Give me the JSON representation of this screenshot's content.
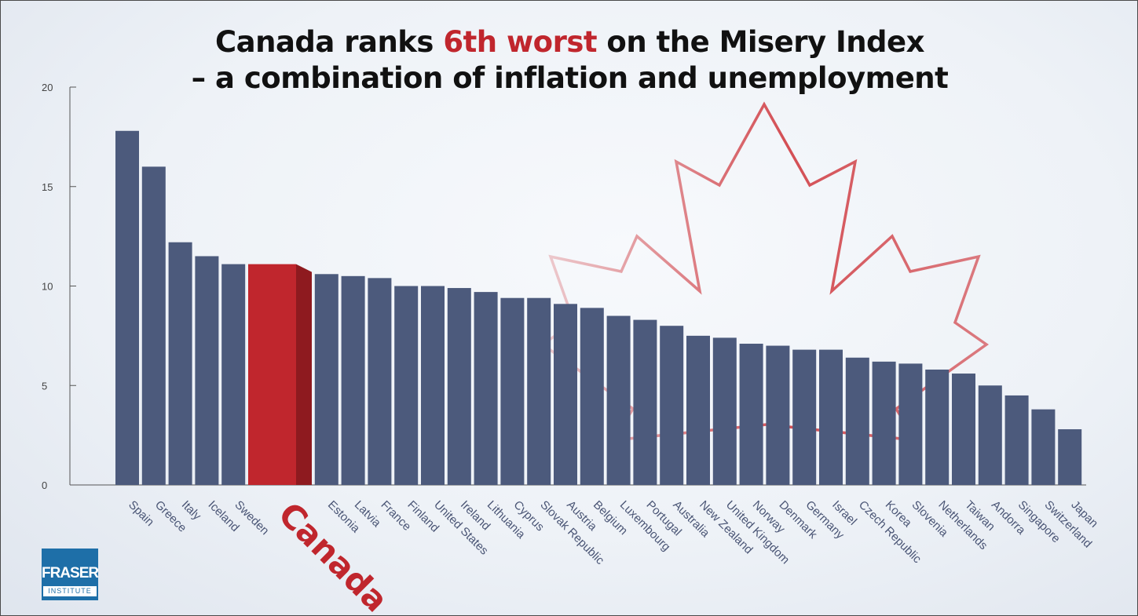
{
  "title": {
    "line1_pre": "Canada ranks ",
    "line1_highlight": "6th worst",
    "line1_post": " on the Misery Index",
    "line2": "– a combination of inflation and unemployment"
  },
  "logo": {
    "name": "FRASER",
    "sub": "INSTITUTE"
  },
  "colors": {
    "bar": "#4c5a7c",
    "highlight": "#c0262d",
    "highlight_side": "#8e1a1f",
    "leaf": "#d2464c"
  },
  "chart_data": {
    "type": "bar",
    "title": "Canada ranks 6th worst on the Misery Index – a combination of inflation and unemployment",
    "ylim": [
      0,
      20
    ],
    "yticks": [
      0,
      5,
      10,
      15,
      20
    ],
    "grid": false,
    "highlight_category": "Canada",
    "categories": [
      "Spain",
      "Greece",
      "Italy",
      "Iceland",
      "Sweden",
      "Canada",
      "Estonia",
      "Latvia",
      "France",
      "Finland",
      "United States",
      "Ireland",
      "Lithuania",
      "Cyprus",
      "Slovak Republic",
      "Austria",
      "Belgium",
      "Luxembourg",
      "Portugal",
      "Australia",
      "New Zealand",
      "United Kingdom",
      "Norway",
      "Denmark",
      "Germany",
      "Israel",
      "Czech Republic",
      "Korea",
      "Slovenia",
      "Netherlands",
      "Taiwan",
      "Andorra",
      "Singapore",
      "Switzerland",
      "Japan"
    ],
    "values": [
      17.8,
      16.0,
      12.2,
      11.5,
      11.1,
      11.1,
      10.6,
      10.5,
      10.4,
      10.0,
      10.0,
      9.9,
      9.7,
      9.4,
      9.4,
      9.1,
      8.9,
      8.5,
      8.3,
      8.0,
      7.5,
      7.4,
      7.1,
      7.0,
      6.8,
      6.8,
      6.4,
      6.2,
      6.1,
      5.8,
      5.6,
      5.0,
      4.5,
      3.8,
      2.8
    ]
  }
}
